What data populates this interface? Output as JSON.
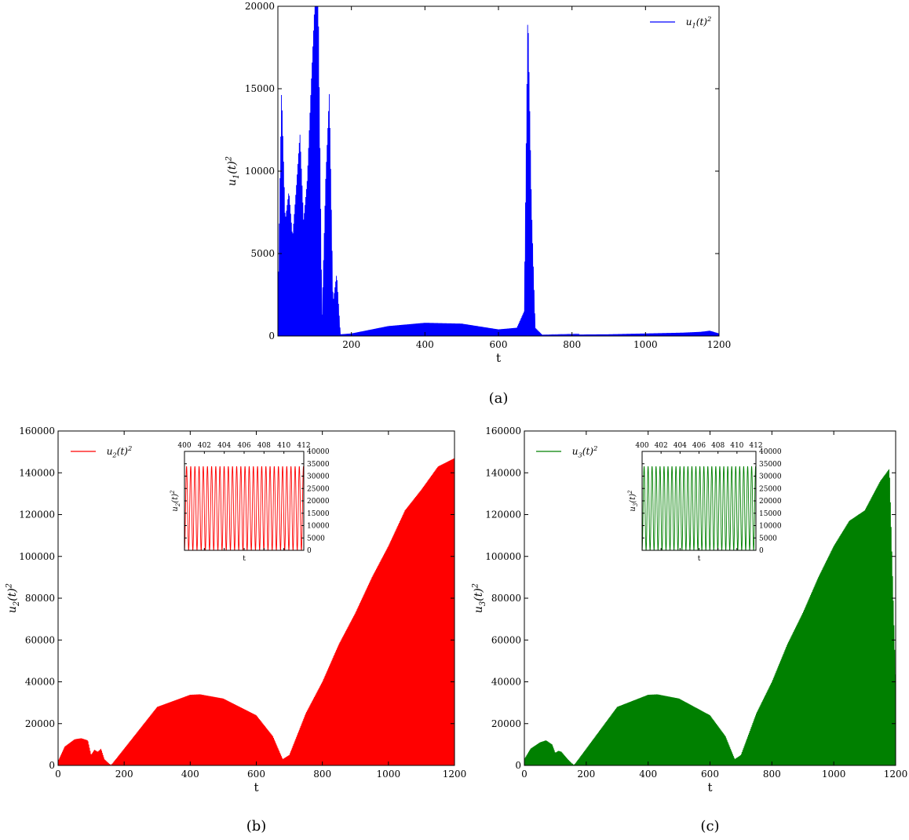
{
  "chart_data": [
    {
      "id": "a",
      "type": "line",
      "caption": "(a)",
      "xlabel": "t",
      "ylabel": "u1(t)^2",
      "xlim": [
        0,
        1200
      ],
      "ylim": [
        0,
        20000
      ],
      "xticks": [
        200,
        400,
        600,
        800,
        1000,
        1200
      ],
      "yticks": [
        0,
        5000,
        10000,
        15000,
        20000
      ],
      "grid": false,
      "legend_position": "top-right",
      "series": [
        {
          "name": "u1(t)^2",
          "color": "#0000ff",
          "x": [
            0,
            5,
            10,
            20,
            30,
            40,
            50,
            60,
            70,
            80,
            90,
            100,
            110,
            120,
            130,
            140,
            150,
            160,
            170,
            200,
            300,
            400,
            500,
            600,
            650,
            670,
            680,
            690,
            700,
            720,
            800,
            900,
            1000,
            1100,
            1150,
            1175,
            1200
          ],
          "y": [
            1000,
            8500,
            15000,
            7000,
            8800,
            6000,
            9000,
            12300,
            7000,
            9500,
            15000,
            20000,
            20000,
            1000,
            9500,
            14800,
            2000,
            3800,
            100,
            150,
            600,
            800,
            750,
            400,
            500,
            1500,
            20000,
            7800,
            500,
            50,
            80,
            100,
            150,
            200,
            250,
            320,
            150
          ]
        }
      ]
    },
    {
      "id": "b",
      "type": "line",
      "caption": "(b)",
      "xlabel": "t",
      "ylabel": "u2(t)^2",
      "xlim": [
        0,
        1200
      ],
      "ylim": [
        0,
        160000
      ],
      "xticks": [
        0,
        200,
        400,
        600,
        800,
        1000,
        1200
      ],
      "yticks": [
        0,
        20000,
        40000,
        60000,
        80000,
        100000,
        120000,
        140000,
        160000
      ],
      "grid": false,
      "legend_position": "top-left",
      "series": [
        {
          "name": "u2(t)^2",
          "color": "#ff0000",
          "x": [
            0,
            20,
            50,
            70,
            90,
            100,
            110,
            120,
            130,
            140,
            160,
            200,
            300,
            400,
            430,
            500,
            600,
            650,
            680,
            700,
            750,
            800,
            850,
            900,
            950,
            1000,
            1050,
            1100,
            1150,
            1200
          ],
          "y": [
            2000,
            9000,
            12500,
            13000,
            12000,
            5000,
            7500,
            6500,
            8000,
            3000,
            0,
            8000,
            28000,
            33800,
            34000,
            32000,
            24000,
            14000,
            3000,
            5000,
            25000,
            40000,
            58000,
            73000,
            90000,
            105000,
            122000,
            132000,
            143000,
            147000
          ]
        }
      ],
      "inset": {
        "xlabel": "t",
        "ylabel": "u2(t)^2",
        "xlim": [
          400,
          412
        ],
        "ylim": [
          0,
          40000
        ],
        "xticks": [
          400,
          402,
          404,
          406,
          408,
          410,
          412
        ],
        "yticks": [
          0,
          5000,
          10000,
          15000,
          20000,
          25000,
          30000,
          35000,
          40000
        ],
        "amplitude": 34000,
        "period": 0.42
      }
    },
    {
      "id": "c",
      "type": "line",
      "caption": "(c)",
      "xlabel": "t",
      "ylabel": "u3(t)^2",
      "xlim": [
        0,
        1200
      ],
      "ylim": [
        0,
        160000
      ],
      "xticks": [
        0,
        200,
        400,
        600,
        800,
        1000,
        1200
      ],
      "yticks": [
        0,
        20000,
        40000,
        60000,
        80000,
        100000,
        120000,
        140000,
        160000
      ],
      "grid": false,
      "legend_position": "top-left",
      "series": [
        {
          "name": "u3(t)^2",
          "color": "#008000",
          "x": [
            0,
            20,
            50,
            70,
            90,
            100,
            110,
            120,
            140,
            160,
            200,
            300,
            400,
            430,
            500,
            600,
            650,
            680,
            700,
            750,
            800,
            850,
            900,
            950,
            1000,
            1050,
            1100,
            1150,
            1180,
            1200
          ],
          "y": [
            3000,
            8000,
            11000,
            12000,
            10000,
            6000,
            7000,
            6500,
            3000,
            0,
            8000,
            28000,
            33800,
            34000,
            32000,
            24000,
            14000,
            3000,
            5000,
            25000,
            40000,
            58000,
            73000,
            90000,
            105000,
            117000,
            122000,
            136000,
            142000,
            40000
          ]
        }
      ],
      "inset": {
        "xlabel": "t",
        "ylabel": "u3(t)^2",
        "xlim": [
          400,
          412
        ],
        "ylim": [
          0,
          40000
        ],
        "xticks": [
          400,
          402,
          404,
          406,
          408,
          410,
          412
        ],
        "yticks": [
          0,
          5000,
          10000,
          15000,
          20000,
          25000,
          30000,
          35000,
          40000
        ],
        "amplitude": 34000,
        "period": 0.42
      }
    }
  ]
}
